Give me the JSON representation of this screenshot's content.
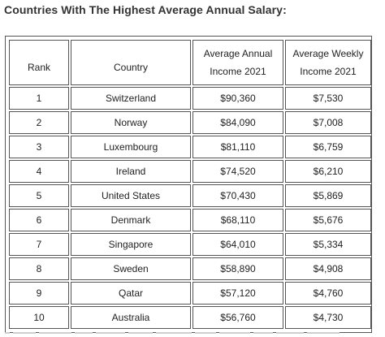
{
  "title": "Countries With The Highest Average Annual Salary:",
  "table": {
    "headers": {
      "rank": "Rank",
      "country": "Country",
      "annual_line1": "Average Annual",
      "annual_line2": "Income 2021",
      "weekly_line1": "Average Weekly",
      "weekly_line2": "Income 2021"
    },
    "rows": [
      {
        "rank": "1",
        "country": "Switzerland",
        "annual": "$90,360",
        "weekly": "$7,530"
      },
      {
        "rank": "2",
        "country": "Norway",
        "annual": "$84,090",
        "weekly": "$7,008"
      },
      {
        "rank": "3",
        "country": "Luxembourg",
        "annual": "$81,110",
        "weekly": "$6,759"
      },
      {
        "rank": "4",
        "country": "Ireland",
        "annual": "$74,520",
        "weekly": "$6,210"
      },
      {
        "rank": "5",
        "country": "United States",
        "annual": "$70,430",
        "weekly": "$5,869"
      },
      {
        "rank": "6",
        "country": "Denmark",
        "annual": "$68,110",
        "weekly": "$5,676"
      },
      {
        "rank": "7",
        "country": "Singapore",
        "annual": "$64,010",
        "weekly": "$5,334"
      },
      {
        "rank": "8",
        "country": "Sweden",
        "annual": "$58,890",
        "weekly": "$4,908"
      },
      {
        "rank": "9",
        "country": "Qatar",
        "annual": "$57,120",
        "weekly": "$4,760"
      },
      {
        "rank": "10",
        "country": "Australia",
        "annual": "$56,760",
        "weekly": "$4,730"
      }
    ]
  }
}
